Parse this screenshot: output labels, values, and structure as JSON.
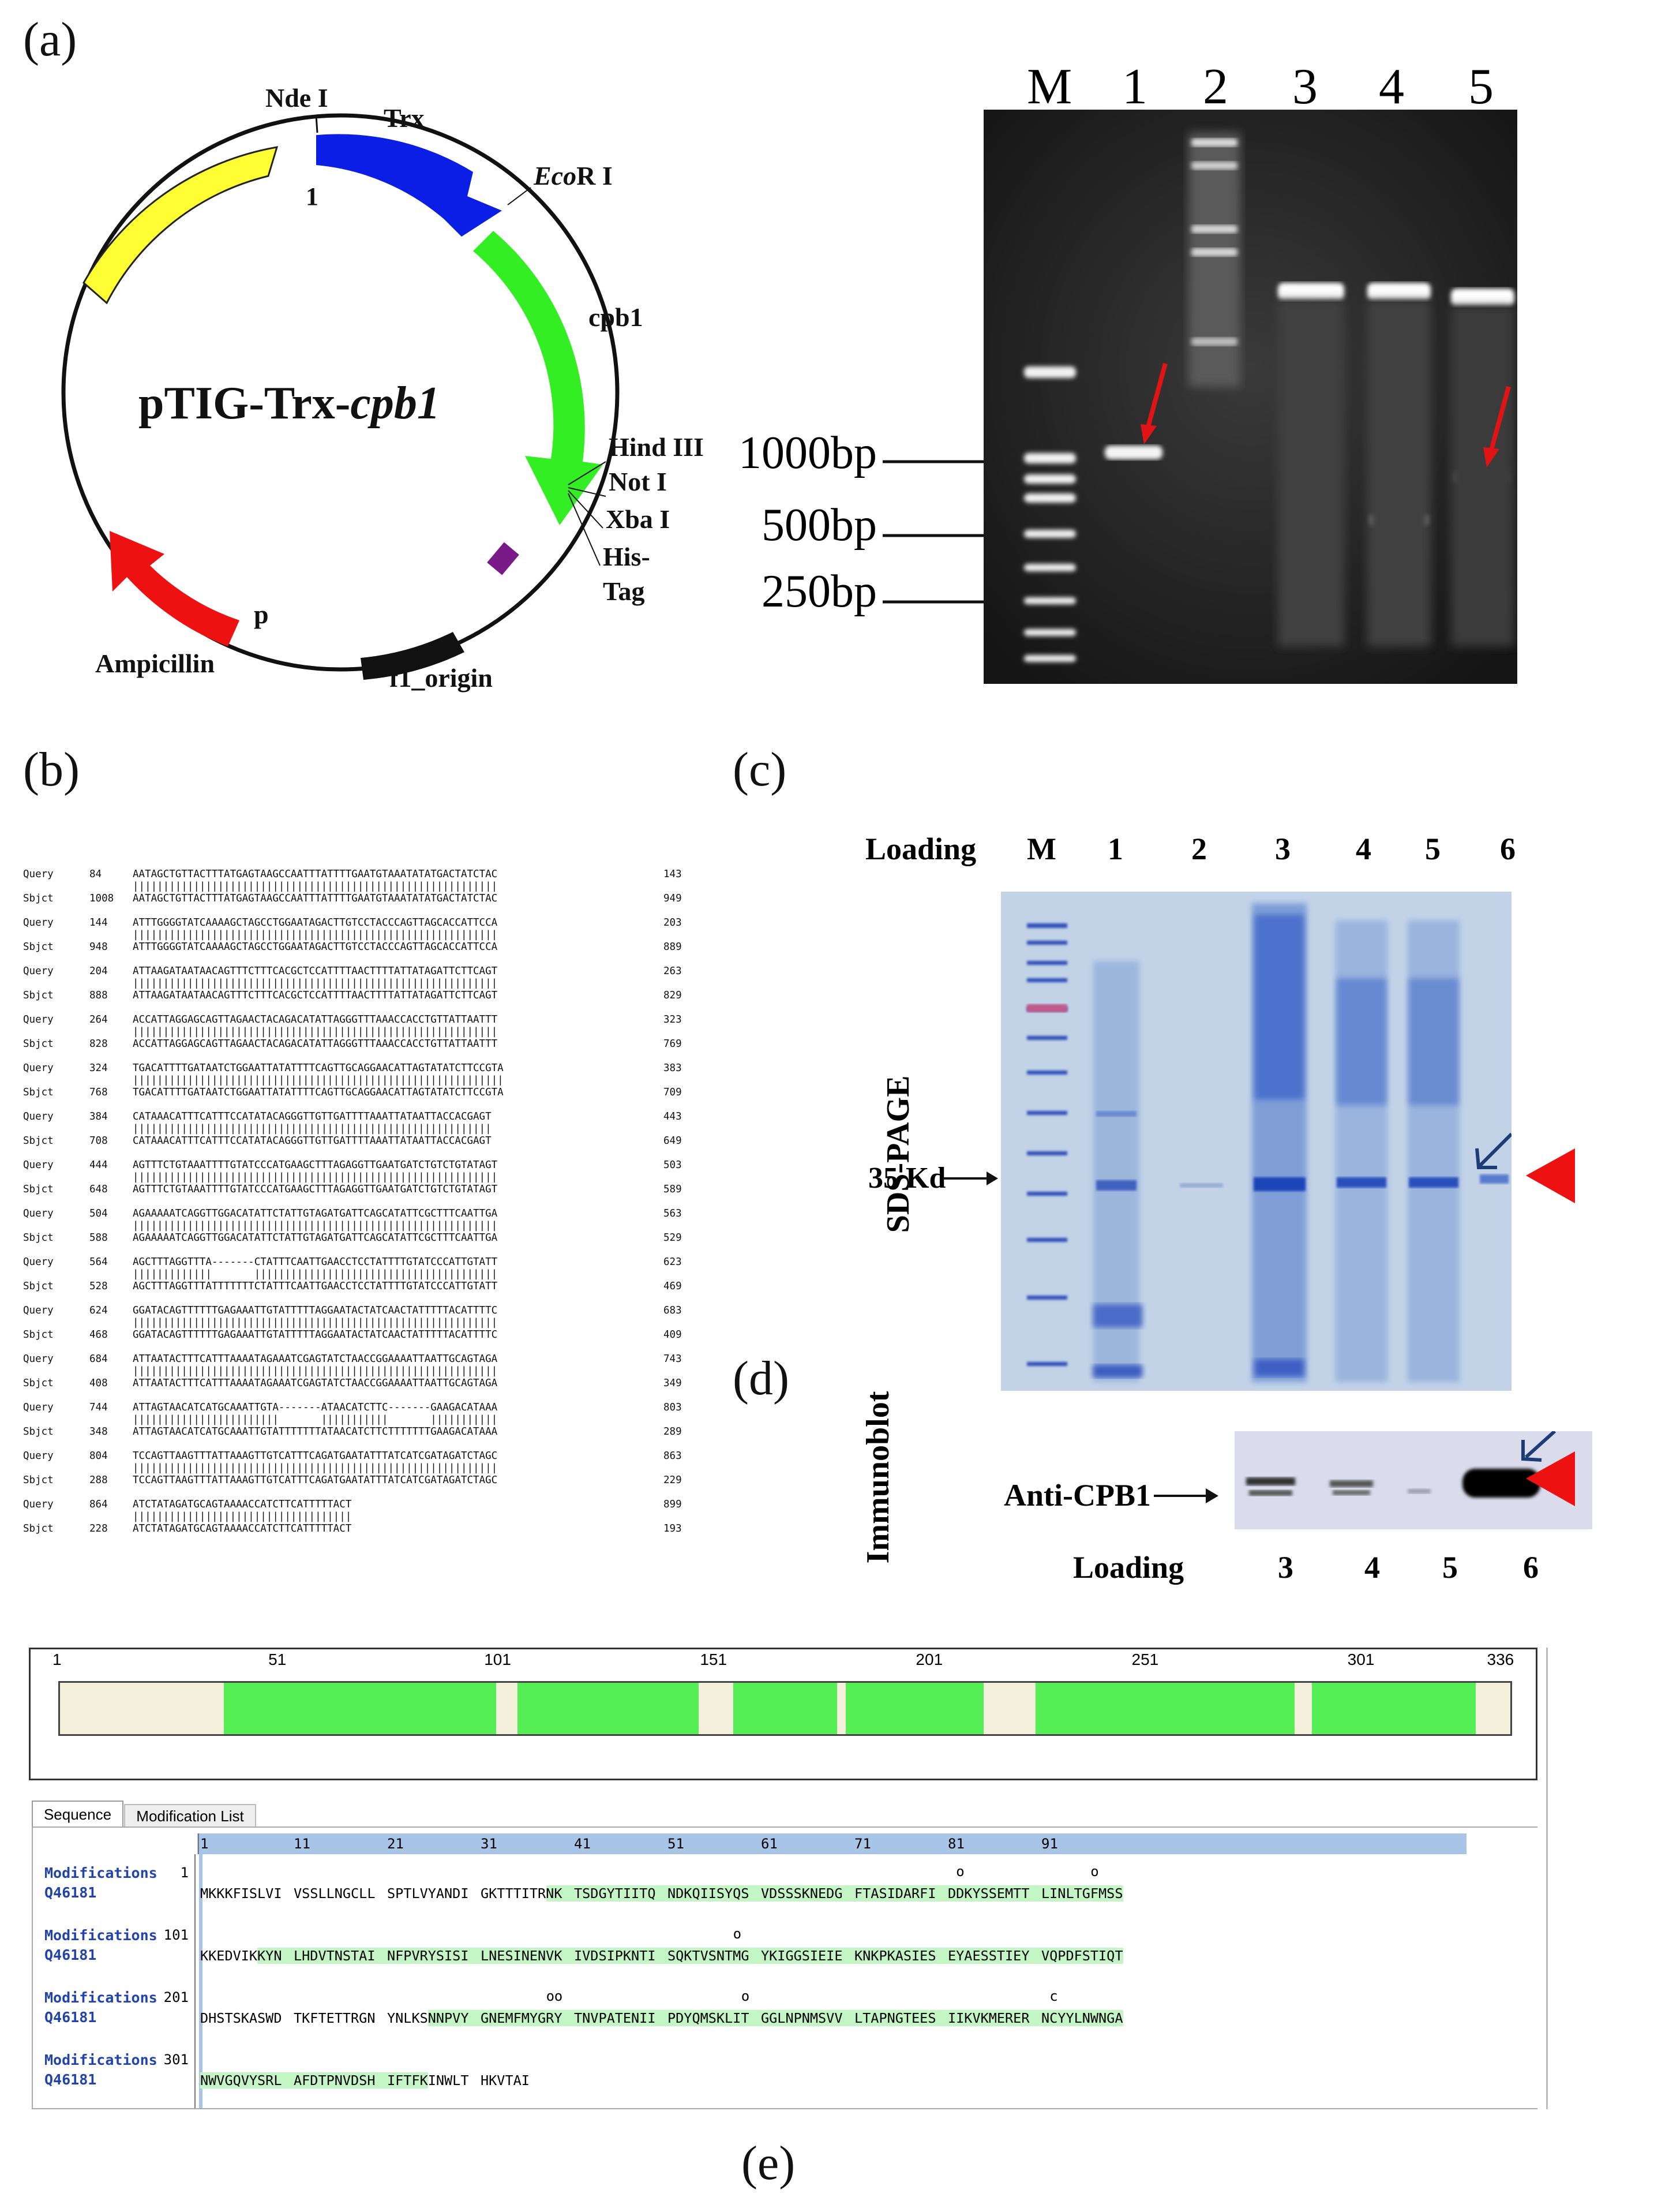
{
  "panels": {
    "a": "(a)",
    "b": "(b)",
    "c": "(c)",
    "d": "(d)",
    "e": "(e)"
  },
  "plasmid": {
    "name_prefix": "pTIG-Trx-",
    "name_gene": "cpb1",
    "labels": {
      "ndei": "Nde I",
      "one": "1",
      "trx": "Trx",
      "ecori_italic": "Eco",
      "ecori_rest": "R I",
      "cpb1": "cpb1",
      "hindiii": "Hind III",
      "noti": "Not I",
      "xbai": "Xba I",
      "his": "His-",
      "tag": "Tag",
      "ampicillin": "Ampicillin",
      "p": "p",
      "f1": "f1_origin"
    },
    "colors": {
      "trx": "#0a1ee6",
      "cpb1": "#33ee22",
      "yellow": "#ffff33",
      "amp": "#ee1111",
      "f1": "#111111",
      "purple": "#7a1a88"
    }
  },
  "gel": {
    "lanes": [
      "M",
      "1",
      "2",
      "3",
      "4",
      "5"
    ],
    "markers": [
      "1000bp",
      "500bp",
      "250bp"
    ]
  },
  "alignment": {
    "rows": [
      {
        "q": "Query",
        "qs": "84",
        "qseq": "AATAGCTGTTACTTTATGAGTAAGCCAATTTATTTTGAATGTAAATATATGACTATCTAC",
        "qe": "143",
        "s": "Sbjct",
        "ss": "1008",
        "sseq": "AATAGCTGTTACTTTATGAGTAAGCCAATTTATTTTGAATGTAAATATATGACTATCTAC",
        "se": "949"
      },
      {
        "q": "Query",
        "qs": "144",
        "qseq": "ATTTGGGGTATCAAAAGCTAGCCTGGAATAGACTTGTCCTACCCAGTTAGCACCATTCCA",
        "qe": "203",
        "s": "Sbjct",
        "ss": "948",
        "sseq": "ATTTGGGGTATCAAAAGCTAGCCTGGAATAGACTTGTCCTACCCAGTTAGCACCATTCCA",
        "se": "889"
      },
      {
        "q": "Query",
        "qs": "204",
        "qseq": "ATTAAGATAATAACAGTTTCTTTCACGCTCCATTTTAACTTTTATTATAGATTCTTCAGT",
        "qe": "263",
        "s": "Sbjct",
        "ss": "888",
        "sseq": "ATTAAGATAATAACAGTTTCTTTCACGCTCCATTTTAACTTTTATTATAGATTCTTCAGT",
        "se": "829"
      },
      {
        "q": "Query",
        "qs": "264",
        "qseq": "ACCATTAGGAGCAGTTAGAACTACAGACATATTAGGGTTTAAACCACCTGTTATTAATTT",
        "qe": "323",
        "s": "Sbjct",
        "ss": "828",
        "sseq": "ACCATTAGGAGCAGTTAGAACTACAGACATATTAGGGTTTAAACCACCTGTTATTAATTT",
        "se": "769"
      },
      {
        "q": "Query",
        "qs": "324",
        "qseq": "TGACATTTTGATAATCTGGAATTATATTTTCAGTTGCAGGAACATTAGTATATCTTCCGTA",
        "qe": "383",
        "s": "Sbjct",
        "ss": "768",
        "sseq": "TGACATTTTGATAATCTGGAATTATATTTTCAGTTGCAGGAACATTAGTATATCTTCCGTA",
        "se": "709"
      },
      {
        "q": "Query",
        "qs": "384",
        "qseq": "CATAAACATTTCATTTCCATATACAGGGTTGTTGATTTTAAATTATAATTACCACGAGT",
        "qe": "443",
        "s": "Sbjct",
        "ss": "708",
        "sseq": "CATAAACATTTCATTTCCATATACAGGGTTGTTGATTTTAAATTATAATTACCACGAGT",
        "se": "649"
      },
      {
        "q": "Query",
        "qs": "444",
        "qseq": "AGTTTCTGTAAATTTTGTATCCCATGAAGCTTTAGAGGTTGAATGATCTGTCTGTATAGT",
        "qe": "503",
        "s": "Sbjct",
        "ss": "648",
        "sseq": "AGTTTCTGTAAATTTTGTATCCCATGAAGCTTTAGAGGTTGAATGATCTGTCTGTATAGT",
        "se": "589"
      },
      {
        "q": "Query",
        "qs": "504",
        "qseq": "AGAAAAATCAGGTTGGACATATTCTATTGTAGATGATTCAGCATATTCGCTTTCAATTGA",
        "qe": "563",
        "s": "Sbjct",
        "ss": "588",
        "sseq": "AGAAAAATCAGGTTGGACATATTCTATTGTAGATGATTCAGCATATTCGCTTTCAATTGA",
        "se": "529"
      },
      {
        "q": "Query",
        "qs": "564",
        "qseq": "AGCTTTAGGTTTA-------CTATTTCAATTGAACCTCCTATTTTGTATCCCATTGTATT",
        "qe": "623",
        "s": "Sbjct",
        "ss": "528",
        "sseq": "AGCTTTAGGTTTATTTTTTTCTATTTCAATTGAACCTCCTATTTTGTATCCCATTGTATT",
        "se": "469"
      },
      {
        "q": "Query",
        "qs": "624",
        "qseq": "GGATACAGTTTTTTGAGAAATTGTATTTTTAGGAATACTATCAACTATTTTTACATTTTC",
        "qe": "683",
        "s": "Sbjct",
        "ss": "468",
        "sseq": "GGATACAGTTTTTTGAGAAATTGTATTTTTAGGAATACTATCAACTATTTTTACATTTTC",
        "se": "409"
      },
      {
        "q": "Query",
        "qs": "684",
        "qseq": "ATTAATACTTTCATTTAAAATAGAAATCGAGTATCTAACCGGAAAATTAATTGCAGTAGA",
        "qe": "743",
        "s": "Sbjct",
        "ss": "408",
        "sseq": "ATTAATACTTTCATTTAAAATAGAAATCGAGTATCTAACCGGAAAATTAATTGCAGTAGA",
        "se": "349"
      },
      {
        "q": "Query",
        "qs": "744",
        "qseq": "ATTAGTAACATCATGCAAATTGTA-------ATAACATCTTC-------GAAGACATAAA",
        "qe": "803",
        "s": "Sbjct",
        "ss": "348",
        "sseq": "ATTAGTAACATCATGCAAATTGTATTTTTTTATAACATCTTCTTTTTTTGAAGACATAAA",
        "se": "289"
      },
      {
        "q": "Query",
        "qs": "804",
        "qseq": "TCCAGTTAAGTTTATTAAAGTTGTCATTTCAGATGAATATTTATCATCGATAGATCTAGC",
        "qe": "863",
        "s": "Sbjct",
        "ss": "288",
        "sseq": "TCCAGTTAAGTTTATTAAAGTTGTCATTTCAGATGAATATTTATCATCGATAGATCTAGC",
        "se": "229"
      },
      {
        "q": "Query",
        "qs": "864",
        "qseq": "ATCTATAGATGCAGTAAAACCATCTTCATTTTTACT",
        "qe": "899",
        "s": "Sbjct",
        "ss": "228",
        "sseq": "ATCTATAGATGCAGTAAAACCATCTTCATTTTTACT",
        "se": "193"
      }
    ]
  },
  "sds": {
    "loading": "Loading",
    "lanes": [
      "M",
      "1",
      "2",
      "3",
      "4",
      "5",
      "6"
    ],
    "side": "SDS-PAGE",
    "kd": "35 Kd"
  },
  "immuno": {
    "side": "Immunoblot",
    "label": "Anti-CPB1",
    "loading": "Loading",
    "lanes": [
      "3",
      "4",
      "5",
      "6"
    ]
  },
  "coverage": {
    "ticks": [
      "1",
      "51",
      "101",
      "151",
      "201",
      "251",
      "301",
      "336"
    ],
    "segments": [
      [
        39,
        101
      ],
      [
        107,
        148
      ],
      [
        157,
        180
      ],
      [
        183,
        214
      ],
      [
        227,
        286
      ],
      [
        291,
        328
      ]
    ],
    "colors": {
      "bg": "#f2f0da",
      "cov": "#55ee55",
      "highlight": "#c4f5c4",
      "header": "#a8c4e6"
    }
  },
  "sequence_panel": {
    "tabs": [
      "Sequence",
      "Modification List"
    ],
    "col_nums": [
      "1",
      "11",
      "21",
      "31",
      "41",
      "51",
      "61",
      "71",
      "81",
      "91"
    ],
    "row_label_1": "Modifications",
    "row_label_2": "Q46181",
    "rows": [
      {
        "start": "101",
        "marks": [
          [
            8,
            1,
            "o"
          ],
          [
            9,
            6,
            "o"
          ]
        ],
        "groups": [
          "MKKKFISLVI",
          "VSSLLNGCLL",
          "SPTLVYANDI",
          "GKTTTITRNK",
          "TSDGYTIITQ",
          "NDKQIISYQS",
          "VDSSSKNEDG",
          "FTASIDARFI",
          "DDKYSSEMTT",
          "LINLTGFMSS"
        ],
        "hl": [
          [
            3,
            8,
            9,
            9
          ]
        ]
      },
      {
        "start": "201",
        "marks": [
          [
            5,
            8,
            "o"
          ]
        ],
        "groups": [
          "KKEDVIKKYN",
          "LHDVTNSTAI",
          "NFPVRYSISI",
          "LNESINENVK",
          "IVDSIPKNTI",
          "SQKTVSNTMG",
          "YKIGGSIEIE",
          "KNKPKASIES",
          "EYAESSTIEY",
          "VQPDFSTIQT"
        ],
        "hl": [
          [
            0,
            7,
            9,
            9
          ]
        ]
      },
      {
        "start": "301",
        "marks": [
          [
            3,
            8,
            "o"
          ],
          [
            3,
            9,
            "o"
          ],
          [
            5,
            9,
            "o"
          ],
          [
            9,
            1,
            "c"
          ]
        ],
        "groups": [
          "DHSTSKASWD",
          "TKFTETTRGN",
          "YNLKSNNPVY",
          "GNEMFMYGRY",
          "TNVPATENII",
          "PDYQMSKLIT",
          "GGLNPNMSVV",
          "LTAPNGTEES",
          "IIKVKMERER",
          "NCYYLNWNGA"
        ],
        "hl": [
          [
            2,
            5,
            9,
            9
          ]
        ]
      },
      {
        "start": "",
        "marks": [],
        "groups": [
          "NWVGQVYSRL",
          "AFDTPNVDSH",
          "IFTFKINWLT",
          "HKVTAI"
        ],
        "hl": [
          [
            0,
            0,
            2,
            4
          ]
        ]
      }
    ],
    "row_starts": [
      "1",
      "101",
      "201",
      "301"
    ]
  }
}
